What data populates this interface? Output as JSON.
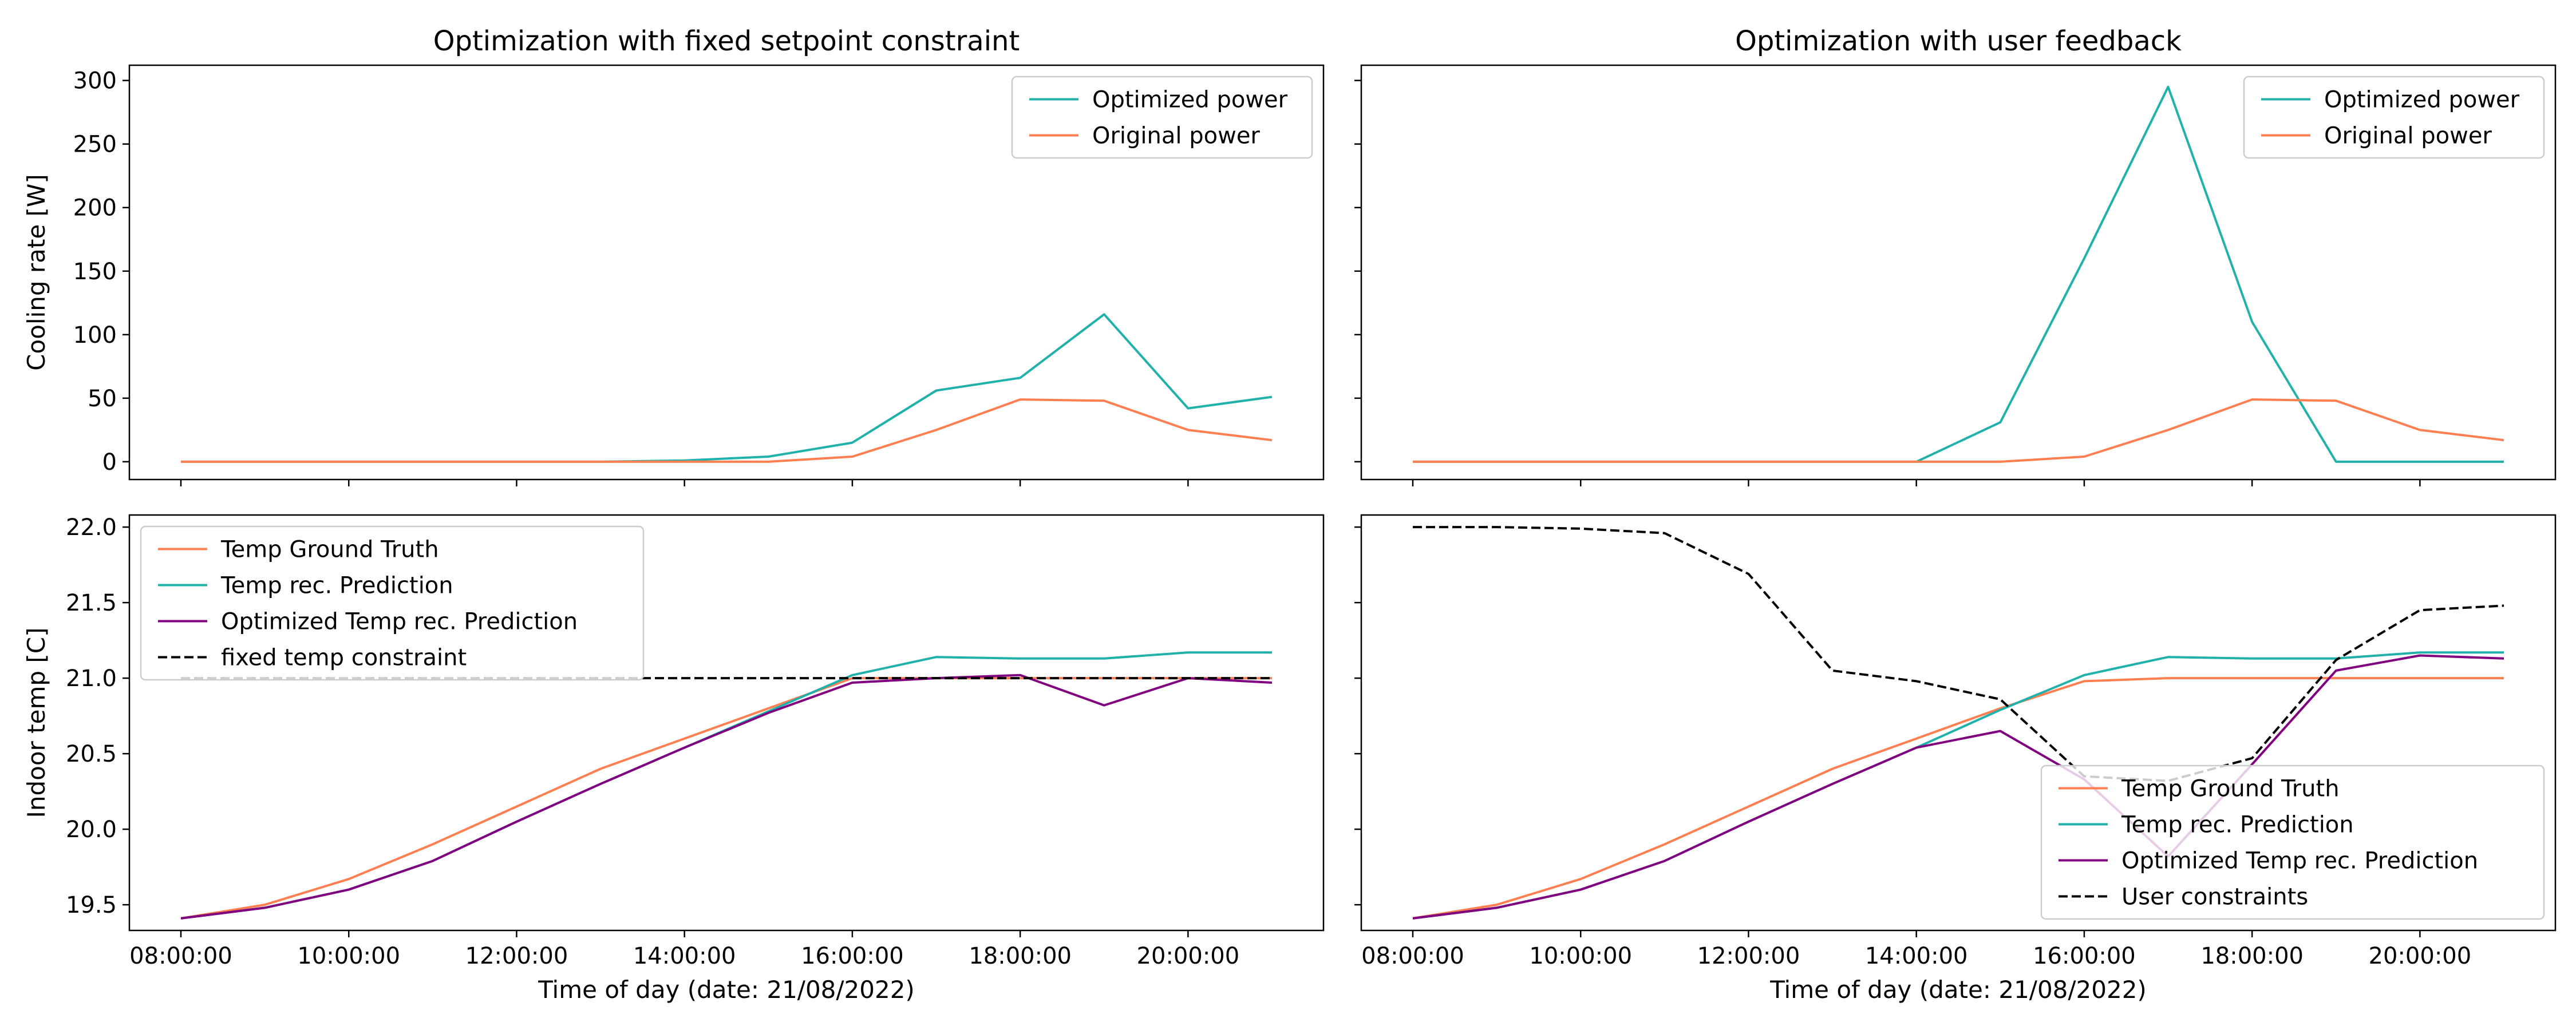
{
  "chart_data": [
    {
      "type": "line",
      "title": "Optimization with fixed setpoint constraint",
      "xlabel": "",
      "ylabel": "Cooling rate [W]",
      "x": [
        "08:00:00",
        "09:00:00",
        "10:00:00",
        "11:00:00",
        "12:00:00",
        "13:00:00",
        "14:00:00",
        "15:00:00",
        "16:00:00",
        "17:00:00",
        "18:00:00",
        "19:00:00",
        "20:00:00",
        "21:00:00"
      ],
      "xticks": [
        "08:00:00",
        "10:00:00",
        "12:00:00",
        "14:00:00",
        "16:00:00",
        "18:00:00",
        "20:00:00"
      ],
      "ylim": [
        -14,
        312
      ],
      "yticks": [
        0,
        50,
        100,
        150,
        200,
        250,
        300
      ],
      "legend_position": "top-right",
      "series": [
        {
          "name": "Optimized power",
          "color": "#20b2aa",
          "style": "solid",
          "values": [
            0,
            0,
            0,
            0,
            0,
            0,
            1,
            4,
            15,
            56,
            66,
            116,
            42,
            51
          ]
        },
        {
          "name": "Original power",
          "color": "#ff7f50",
          "style": "solid",
          "values": [
            0,
            0,
            0,
            0,
            0,
            0,
            0,
            0,
            4,
            25,
            49,
            48,
            25,
            17
          ]
        }
      ]
    },
    {
      "type": "line",
      "title": "Optimization with user feedback",
      "xlabel": "",
      "ylabel": "",
      "x": [
        "08:00:00",
        "09:00:00",
        "10:00:00",
        "11:00:00",
        "12:00:00",
        "13:00:00",
        "14:00:00",
        "15:00:00",
        "16:00:00",
        "17:00:00",
        "18:00:00",
        "19:00:00",
        "20:00:00",
        "21:00:00"
      ],
      "xticks": [
        "08:00:00",
        "10:00:00",
        "12:00:00",
        "14:00:00",
        "16:00:00",
        "18:00:00",
        "20:00:00"
      ],
      "ylim": [
        -14,
        312
      ],
      "yticks": [
        0,
        50,
        100,
        150,
        200,
        250,
        300
      ],
      "legend_position": "top-right",
      "series": [
        {
          "name": "Optimized power",
          "color": "#20b2aa",
          "style": "solid",
          "values": [
            0,
            0,
            0,
            0,
            0,
            0,
            0,
            31,
            160,
            295,
            110,
            0,
            0,
            0
          ]
        },
        {
          "name": "Original power",
          "color": "#ff7f50",
          "style": "solid",
          "values": [
            0,
            0,
            0,
            0,
            0,
            0,
            0,
            0,
            4,
            25,
            49,
            48,
            25,
            17
          ]
        }
      ]
    },
    {
      "type": "line",
      "title": "",
      "xlabel": "Time of day (date: 21/08/2022)",
      "ylabel": "Indoor temp [C]",
      "x": [
        "08:00:00",
        "09:00:00",
        "10:00:00",
        "11:00:00",
        "12:00:00",
        "13:00:00",
        "14:00:00",
        "15:00:00",
        "16:00:00",
        "17:00:00",
        "18:00:00",
        "19:00:00",
        "20:00:00",
        "21:00:00"
      ],
      "xticks": [
        "08:00:00",
        "10:00:00",
        "12:00:00",
        "14:00:00",
        "16:00:00",
        "18:00:00",
        "20:00:00"
      ],
      "ylim": [
        19.33,
        22.08
      ],
      "yticks": [
        "19.5",
        "20.0",
        "20.5",
        "21.0",
        "21.5",
        "22.0"
      ],
      "legend_position": "top-left",
      "series": [
        {
          "name": "Temp Ground Truth",
          "color": "#ff7f50",
          "style": "solid",
          "values": [
            19.41,
            19.5,
            19.67,
            19.9,
            20.15,
            20.4,
            20.6,
            20.8,
            21.0,
            21.0,
            21.0,
            21.0,
            21.0,
            21.0
          ]
        },
        {
          "name": "Temp rec. Prediction",
          "color": "#20b2aa",
          "style": "solid",
          "values": [
            19.41,
            19.48,
            19.6,
            19.79,
            20.05,
            20.3,
            20.54,
            20.78,
            21.02,
            21.14,
            21.13,
            21.13,
            21.17,
            21.17
          ]
        },
        {
          "name": "Optimized Temp rec. Prediction",
          "color": "#800080",
          "style": "solid",
          "values": [
            19.41,
            19.48,
            19.6,
            19.79,
            20.05,
            20.3,
            20.54,
            20.77,
            20.97,
            21.0,
            21.02,
            20.82,
            21.0,
            20.97
          ]
        },
        {
          "name": "fixed temp constraint",
          "color": "#000000",
          "style": "dashed",
          "values": [
            21.0,
            21.0,
            21.0,
            21.0,
            21.0,
            21.0,
            21.0,
            21.0,
            21.0,
            21.0,
            21.0,
            21.0,
            21.0,
            21.0
          ]
        }
      ]
    },
    {
      "type": "line",
      "title": "",
      "xlabel": "Time of day (date: 21/08/2022)",
      "ylabel": "",
      "x": [
        "08:00:00",
        "09:00:00",
        "10:00:00",
        "11:00:00",
        "12:00:00",
        "13:00:00",
        "14:00:00",
        "15:00:00",
        "16:00:00",
        "17:00:00",
        "18:00:00",
        "19:00:00",
        "20:00:00",
        "21:00:00"
      ],
      "xticks": [
        "08:00:00",
        "10:00:00",
        "12:00:00",
        "14:00:00",
        "16:00:00",
        "18:00:00",
        "20:00:00"
      ],
      "ylim": [
        19.33,
        22.08
      ],
      "yticks": [
        "19.5",
        "20.0",
        "20.5",
        "21.0",
        "21.5",
        "22.0"
      ],
      "legend_position": "lower-right",
      "series": [
        {
          "name": "Temp Ground Truth",
          "color": "#ff7f50",
          "style": "solid",
          "values": [
            19.41,
            19.5,
            19.67,
            19.9,
            20.15,
            20.4,
            20.6,
            20.8,
            20.98,
            21.0,
            21.0,
            21.0,
            21.0,
            21.0
          ]
        },
        {
          "name": "Temp rec. Prediction",
          "color": "#20b2aa",
          "style": "solid",
          "values": [
            19.41,
            19.48,
            19.6,
            19.79,
            20.05,
            20.3,
            20.54,
            20.79,
            21.02,
            21.14,
            21.13,
            21.13,
            21.17,
            21.17
          ]
        },
        {
          "name": "Optimized Temp rec. Prediction",
          "color": "#800080",
          "style": "solid",
          "values": [
            19.41,
            19.48,
            19.6,
            19.79,
            20.05,
            20.3,
            20.54,
            20.65,
            20.33,
            19.82,
            20.43,
            21.05,
            21.15,
            21.13
          ]
        },
        {
          "name": "User constraints",
          "color": "#000000",
          "style": "dashed",
          "values": [
            22.0,
            22.0,
            21.99,
            21.96,
            21.69,
            21.05,
            20.98,
            20.86,
            20.35,
            20.32,
            20.47,
            21.12,
            21.45,
            21.48
          ]
        }
      ]
    }
  ]
}
